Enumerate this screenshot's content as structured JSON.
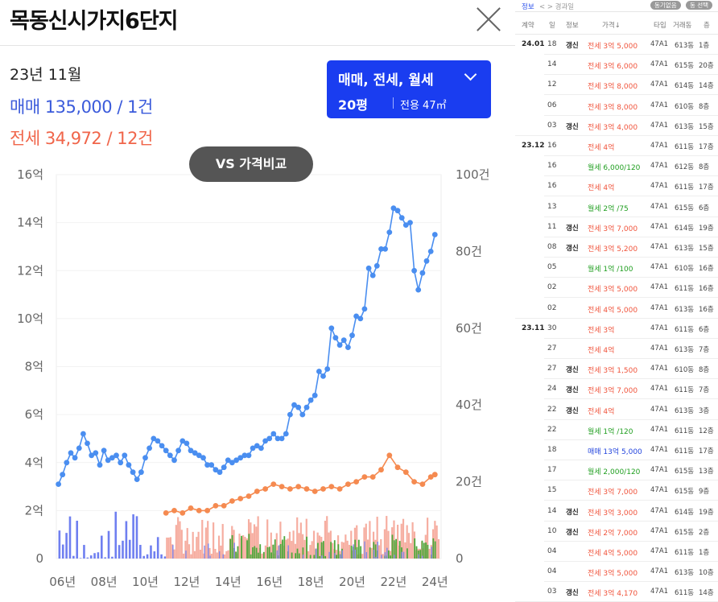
{
  "title": "목동신시가지6단지",
  "summary": {
    "period": "23년 11월",
    "sale": "매매 135,000 / 1건",
    "jeonse": "전세 34,972 / 12건"
  },
  "filter": {
    "trade_types": "매매, 전세, 월세",
    "pyeong": "20평",
    "area": "전용 47㎡"
  },
  "vs_button": "VS 가격비교",
  "colors": {
    "sale": "#4a8ef0",
    "jeonse": "#f58a50",
    "accent": "#1a3df0"
  },
  "chart_data": {
    "type": "line",
    "x_ticks": [
      "06년",
      "08년",
      "10년",
      "12년",
      "14년",
      "16년",
      "18년",
      "20년",
      "22년",
      "24년"
    ],
    "y_left_ticks": [
      "0",
      "2억",
      "4억",
      "6억",
      "8억",
      "10억",
      "12억",
      "14억",
      "16억"
    ],
    "y_right_ticks": [
      "0",
      "20건",
      "40건",
      "60건",
      "80건",
      "100건"
    ],
    "ylim_left": [
      0,
      16
    ],
    "ylim_right": [
      0,
      100
    ],
    "xlim": [
      2005.7,
      2024.3
    ],
    "series": [
      {
        "key": "sale",
        "points": [
          [
            2005.8,
            3.1
          ],
          [
            2006.0,
            3.5
          ],
          [
            2006.2,
            4.0
          ],
          [
            2006.4,
            4.4
          ],
          [
            2006.6,
            4.2
          ],
          [
            2006.8,
            4.6
          ],
          [
            2007.0,
            5.2
          ],
          [
            2007.2,
            4.8
          ],
          [
            2007.4,
            4.3
          ],
          [
            2007.6,
            4.4
          ],
          [
            2007.8,
            3.9
          ],
          [
            2008.0,
            4.5
          ],
          [
            2008.2,
            4.1
          ],
          [
            2008.4,
            4.2
          ],
          [
            2008.6,
            4.3
          ],
          [
            2008.8,
            4.0
          ],
          [
            2009.0,
            4.3
          ],
          [
            2009.2,
            3.9
          ],
          [
            2009.4,
            3.6
          ],
          [
            2009.6,
            3.3
          ],
          [
            2009.8,
            3.6
          ],
          [
            2010.0,
            4.2
          ],
          [
            2010.2,
            4.6
          ],
          [
            2010.4,
            5.0
          ],
          [
            2010.6,
            4.9
          ],
          [
            2010.8,
            4.7
          ],
          [
            2011.0,
            4.5
          ],
          [
            2011.2,
            4.3
          ],
          [
            2011.4,
            4.1
          ],
          [
            2011.6,
            4.5
          ],
          [
            2011.8,
            4.9
          ],
          [
            2012.0,
            4.8
          ],
          [
            2012.2,
            4.5
          ],
          [
            2012.4,
            4.4
          ],
          [
            2012.6,
            4.3
          ],
          [
            2012.8,
            4.2
          ],
          [
            2013.0,
            3.9
          ],
          [
            2013.2,
            3.9
          ],
          [
            2013.4,
            3.7
          ],
          [
            2013.6,
            3.6
          ],
          [
            2013.8,
            3.8
          ],
          [
            2014.0,
            4.1
          ],
          [
            2014.2,
            4.0
          ],
          [
            2014.4,
            4.1
          ],
          [
            2014.6,
            4.2
          ],
          [
            2014.8,
            4.3
          ],
          [
            2015.0,
            4.3
          ],
          [
            2015.2,
            4.6
          ],
          [
            2015.4,
            4.7
          ],
          [
            2015.6,
            4.6
          ],
          [
            2015.8,
            4.9
          ],
          [
            2016.0,
            5.0
          ],
          [
            2016.2,
            5.2
          ],
          [
            2016.4,
            5.0
          ],
          [
            2016.6,
            5.0
          ],
          [
            2016.8,
            5.2
          ],
          [
            2017.0,
            6.0
          ],
          [
            2017.2,
            6.4
          ],
          [
            2017.4,
            6.3
          ],
          [
            2017.6,
            6.0
          ],
          [
            2017.8,
            6.3
          ],
          [
            2018.0,
            6.6
          ],
          [
            2018.2,
            6.8
          ],
          [
            2018.4,
            7.8
          ],
          [
            2018.6,
            7.6
          ],
          [
            2018.8,
            7.9
          ],
          [
            2019.0,
            9.6
          ],
          [
            2019.2,
            9.2
          ],
          [
            2019.4,
            8.9
          ],
          [
            2019.6,
            9.1
          ],
          [
            2019.8,
            8.8
          ],
          [
            2020.0,
            9.3
          ],
          [
            2020.2,
            10.1
          ],
          [
            2020.4,
            10.0
          ],
          [
            2020.6,
            10.4
          ],
          [
            2020.8,
            12.1
          ],
          [
            2021.0,
            11.8
          ],
          [
            2021.2,
            12.2
          ],
          [
            2021.4,
            12.9
          ],
          [
            2021.6,
            12.9
          ],
          [
            2021.8,
            13.6
          ],
          [
            2022.0,
            14.6
          ],
          [
            2022.2,
            14.5
          ],
          [
            2022.4,
            14.2
          ],
          [
            2022.6,
            13.9
          ],
          [
            2022.8,
            14.0
          ],
          [
            2023.0,
            12.0
          ],
          [
            2023.2,
            11.2
          ],
          [
            2023.4,
            11.9
          ],
          [
            2023.6,
            12.4
          ],
          [
            2023.8,
            12.8
          ],
          [
            2024.0,
            13.5
          ]
        ]
      },
      {
        "key": "jeonse",
        "points": [
          [
            2011.0,
            1.9
          ],
          [
            2011.4,
            2.0
          ],
          [
            2011.8,
            1.9
          ],
          [
            2012.2,
            2.1
          ],
          [
            2012.6,
            2.0
          ],
          [
            2013.0,
            2.0
          ],
          [
            2013.4,
            2.2
          ],
          [
            2013.8,
            2.2
          ],
          [
            2014.2,
            2.4
          ],
          [
            2014.6,
            2.5
          ],
          [
            2015.0,
            2.6
          ],
          [
            2015.4,
            2.8
          ],
          [
            2015.8,
            2.9
          ],
          [
            2016.2,
            3.1
          ],
          [
            2016.6,
            3.0
          ],
          [
            2017.0,
            2.9
          ],
          [
            2017.4,
            3.0
          ],
          [
            2017.8,
            2.9
          ],
          [
            2018.2,
            2.8
          ],
          [
            2018.6,
            2.9
          ],
          [
            2019.0,
            3.0
          ],
          [
            2019.4,
            2.9
          ],
          [
            2019.8,
            3.1
          ],
          [
            2020.2,
            3.2
          ],
          [
            2020.6,
            3.4
          ],
          [
            2021.0,
            3.4
          ],
          [
            2021.4,
            3.7
          ],
          [
            2021.8,
            4.3
          ],
          [
            2022.2,
            3.8
          ],
          [
            2022.6,
            3.6
          ],
          [
            2023.0,
            3.2
          ],
          [
            2023.4,
            3.1
          ],
          [
            2023.8,
            3.4
          ],
          [
            2024.0,
            3.5
          ]
        ]
      }
    ]
  },
  "table": {
    "topbar": {
      "info": "정보",
      "nav": "< > 경과일",
      "btn1": "동기없음",
      "btn2": "동 선택"
    },
    "headers": [
      "계약",
      "일",
      "정보",
      "가격↓",
      "타입",
      "거래동",
      "층"
    ],
    "rows": [
      {
        "month": "24.01",
        "day": "18",
        "flag": "갱신",
        "kind": "jeonse",
        "price": "전세 3억 5,000",
        "type": "47A1",
        "bldg": "613동",
        "floor": "1층"
      },
      {
        "month": "",
        "day": "14",
        "flag": "",
        "kind": "jeonse",
        "price": "전세 3억 6,000",
        "type": "47A1",
        "bldg": "615동",
        "floor": "20층"
      },
      {
        "month": "",
        "day": "12",
        "flag": "",
        "kind": "jeonse",
        "price": "전세 3억 8,000",
        "type": "47A1",
        "bldg": "614동",
        "floor": "14층"
      },
      {
        "month": "",
        "day": "06",
        "flag": "",
        "kind": "jeonse",
        "price": "전세 3억 8,000",
        "type": "47A1",
        "bldg": "610동",
        "floor": "8층"
      },
      {
        "month": "",
        "day": "03",
        "flag": "갱신",
        "kind": "jeonse",
        "price": "전세 3억 4,000",
        "type": "47A1",
        "bldg": "613동",
        "floor": "15층"
      },
      {
        "month": "23.12",
        "day": "16",
        "flag": "",
        "kind": "jeonse",
        "price": "전세 4억",
        "type": "47A1",
        "bldg": "611동",
        "floor": "17층"
      },
      {
        "month": "",
        "day": "16",
        "flag": "",
        "kind": "wolse",
        "price": "월세 6,000/120",
        "type": "47A1",
        "bldg": "612동",
        "floor": "8층"
      },
      {
        "month": "",
        "day": "16",
        "flag": "",
        "kind": "jeonse",
        "price": "전세 4억",
        "type": "47A1",
        "bldg": "611동",
        "floor": "17층"
      },
      {
        "month": "",
        "day": "13",
        "flag": "",
        "kind": "wolse",
        "price": "월세 2억 /75",
        "type": "47A1",
        "bldg": "615동",
        "floor": "6층"
      },
      {
        "month": "",
        "day": "11",
        "flag": "갱신",
        "kind": "jeonse",
        "price": "전세 3억 7,000",
        "type": "47A1",
        "bldg": "614동",
        "floor": "19층"
      },
      {
        "month": "",
        "day": "08",
        "flag": "갱신",
        "kind": "jeonse",
        "price": "전세 3억 5,200",
        "type": "47A1",
        "bldg": "613동",
        "floor": "15층"
      },
      {
        "month": "",
        "day": "05",
        "flag": "",
        "kind": "wolse",
        "price": "월세 1억 /100",
        "type": "47A1",
        "bldg": "610동",
        "floor": "16층"
      },
      {
        "month": "",
        "day": "02",
        "flag": "",
        "kind": "jeonse",
        "price": "전세 3억 5,000",
        "type": "47A1",
        "bldg": "611동",
        "floor": "16층"
      },
      {
        "month": "",
        "day": "02",
        "flag": "",
        "kind": "jeonse",
        "price": "전세 4억 5,000",
        "type": "47A1",
        "bldg": "613동",
        "floor": "16층"
      },
      {
        "month": "23.11",
        "day": "30",
        "flag": "",
        "kind": "jeonse",
        "price": "전세 3억",
        "type": "47A1",
        "bldg": "611동",
        "floor": "6층"
      },
      {
        "month": "",
        "day": "27",
        "flag": "",
        "kind": "jeonse",
        "price": "전세 4억",
        "type": "47A1",
        "bldg": "613동",
        "floor": "7층"
      },
      {
        "month": "",
        "day": "27",
        "flag": "갱신",
        "kind": "jeonse",
        "price": "전세 3억 1,500",
        "type": "47A1",
        "bldg": "610동",
        "floor": "8층"
      },
      {
        "month": "",
        "day": "24",
        "flag": "갱신",
        "kind": "jeonse",
        "price": "전세 3억 7,000",
        "type": "47A1",
        "bldg": "611동",
        "floor": "7층"
      },
      {
        "month": "",
        "day": "22",
        "flag": "갱신",
        "kind": "jeonse",
        "price": "전세 4억",
        "type": "47A1",
        "bldg": "613동",
        "floor": "3층"
      },
      {
        "month": "",
        "day": "22",
        "flag": "",
        "kind": "wolse",
        "price": "월세 1억 /120",
        "type": "47A1",
        "bldg": "611동",
        "floor": "12층"
      },
      {
        "month": "",
        "day": "18",
        "flag": "",
        "kind": "sale",
        "price": "매매 13억 5,000",
        "type": "47A1",
        "bldg": "611동",
        "floor": "17층"
      },
      {
        "month": "",
        "day": "17",
        "flag": "",
        "kind": "wolse",
        "price": "월세 2,000/120",
        "type": "47A1",
        "bldg": "615동",
        "floor": "13층"
      },
      {
        "month": "",
        "day": "15",
        "flag": "",
        "kind": "jeonse",
        "price": "전세 3억 7,000",
        "type": "47A1",
        "bldg": "615동",
        "floor": "9층"
      },
      {
        "month": "",
        "day": "14",
        "flag": "갱신",
        "kind": "jeonse",
        "price": "전세 3억 3,000",
        "type": "47A1",
        "bldg": "614동",
        "floor": "19층"
      },
      {
        "month": "",
        "day": "10",
        "flag": "갱신",
        "kind": "jeonse",
        "price": "전세 2억 7,000",
        "type": "47A1",
        "bldg": "615동",
        "floor": "2층"
      },
      {
        "month": "",
        "day": "04",
        "flag": "",
        "kind": "jeonse",
        "price": "전세 4억 5,000",
        "type": "47A1",
        "bldg": "611동",
        "floor": "1층"
      },
      {
        "month": "",
        "day": "04",
        "flag": "",
        "kind": "jeonse",
        "price": "전세 3억 5,000",
        "type": "47A1",
        "bldg": "613동",
        "floor": "10층"
      },
      {
        "month": "",
        "day": "03",
        "flag": "갱신",
        "kind": "jeonse",
        "price": "전세 3억 4,170",
        "type": "47A1",
        "bldg": "611동",
        "floor": "14층"
      }
    ]
  }
}
